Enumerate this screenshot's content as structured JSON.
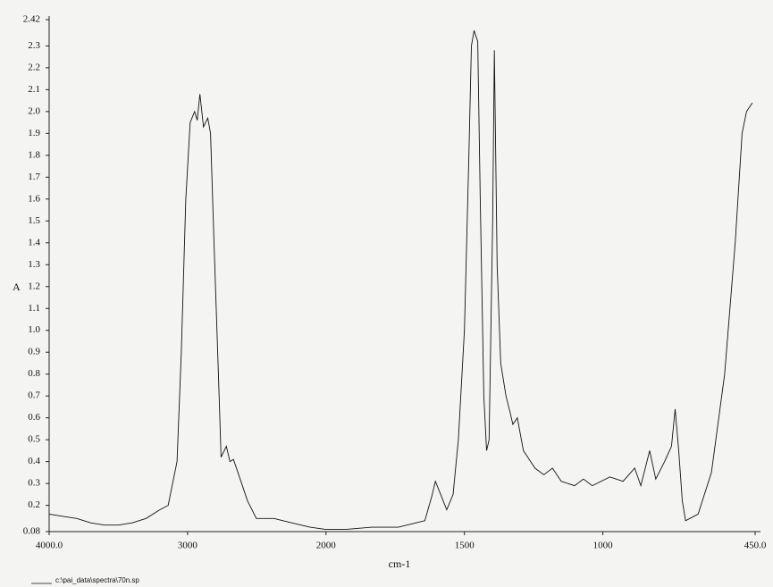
{
  "chart_data": {
    "type": "line",
    "xlabel": "cm-1",
    "ylabel": "A",
    "x": [
      4000,
      3900,
      3800,
      3700,
      3600,
      3500,
      3400,
      3300,
      3200,
      3140,
      3076,
      3045,
      3013,
      2981,
      2949,
      2930,
      2911,
      2885,
      2854,
      2834,
      2809,
      2777,
      2758,
      2720,
      2694,
      2669,
      2631,
      2567,
      2503,
      2376,
      2248,
      2115,
      2000,
      1930,
      1834,
      1739,
      1675,
      1643,
      1618,
      1605,
      1586,
      1564,
      1541,
      1522,
      1500,
      1484,
      1475,
      1465,
      1452,
      1443,
      1430,
      1420,
      1411,
      1398,
      1392,
      1382,
      1369,
      1350,
      1334,
      1325,
      1309,
      1287,
      1245,
      1213,
      1182,
      1150,
      1102,
      1070,
      1038,
      975,
      927,
      885,
      863,
      831,
      809,
      777,
      752,
      739,
      726,
      713,
      701,
      656,
      608,
      560,
      522,
      497,
      481,
      460
    ],
    "series": [
      {
        "name": "c:\\pai_data\\spectra\\70n.sp",
        "color": "#111111",
        "values": [
          0.16,
          0.15,
          0.14,
          0.12,
          0.11,
          0.11,
          0.12,
          0.14,
          0.18,
          0.2,
          0.4,
          0.9,
          1.6,
          1.95,
          2.0,
          1.96,
          2.08,
          1.93,
          1.97,
          1.9,
          1.4,
          0.8,
          0.42,
          0.47,
          0.4,
          0.41,
          0.34,
          0.22,
          0.14,
          0.14,
          0.12,
          0.1,
          0.09,
          0.09,
          0.1,
          0.1,
          0.12,
          0.13,
          0.24,
          0.31,
          0.25,
          0.18,
          0.25,
          0.5,
          1.0,
          1.8,
          2.3,
          2.37,
          2.32,
          1.6,
          0.7,
          0.45,
          0.5,
          1.5,
          2.28,
          1.3,
          0.85,
          0.7,
          0.62,
          0.57,
          0.6,
          0.45,
          0.37,
          0.34,
          0.37,
          0.31,
          0.29,
          0.32,
          0.29,
          0.33,
          0.31,
          0.37,
          0.29,
          0.45,
          0.32,
          0.4,
          0.47,
          0.64,
          0.45,
          0.22,
          0.13,
          0.16,
          0.35,
          0.8,
          1.4,
          1.9,
          2.0,
          2.04
        ]
      }
    ],
    "xlim": [
      4000,
      450
    ],
    "x_scale_break": {
      "at": 2000,
      "expand": 2
    },
    "xticks": [
      {
        "value": 4000,
        "label": "4000.0"
      },
      3000,
      2000,
      1500,
      1000,
      {
        "value": 450,
        "label": "450.0"
      }
    ],
    "ylim": [
      0.08,
      2.42
    ],
    "yticks": [
      0.08,
      0.2,
      0.3,
      0.4,
      0.5,
      0.6,
      0.7,
      0.8,
      0.9,
      {
        "value": 1,
        "label": "1.0"
      },
      1.1,
      1.2,
      1.3,
      1.4,
      1.5,
      1.6,
      1.7,
      1.8,
      1.9,
      {
        "value": 2,
        "label": "2.0"
      },
      2.1,
      2.2,
      2.3,
      2.42
    ],
    "legend": "bottom-left",
    "grid": false
  }
}
